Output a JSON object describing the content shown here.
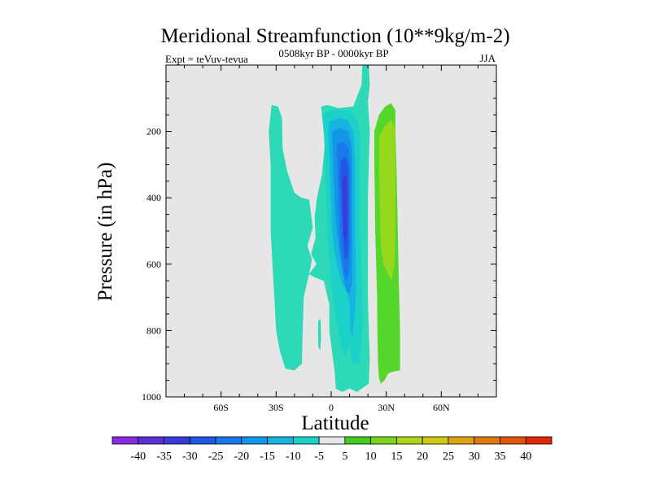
{
  "chart_data": {
    "type": "contour",
    "title": "Meridional Streamfunction (10**9kg/m-2)",
    "subtitle_left": "Expt = teVuv-tevua",
    "subtitle_center": "0508kyr BP - 0000kyr BP",
    "subtitle_right": "JJA",
    "xlabel": "Latitude",
    "ylabel": "Pressure (in hPa)",
    "xlim": [
      -90,
      90
    ],
    "ylim": [
      1000,
      0
    ],
    "x_ticks": [
      {
        "value": -60,
        "label": "60S"
      },
      {
        "value": -30,
        "label": "30S"
      },
      {
        "value": 0,
        "label": "0"
      },
      {
        "value": 30,
        "label": "30N"
      },
      {
        "value": 60,
        "label": "60N"
      }
    ],
    "y_ticks": [
      {
        "value": 200,
        "label": "200"
      },
      {
        "value": 400,
        "label": "400"
      },
      {
        "value": 600,
        "label": "600"
      },
      {
        "value": 800,
        "label": "800"
      },
      {
        "value": 1000,
        "label": "1000"
      }
    ],
    "plot_background": "#e6e6e6",
    "levels": [
      -40,
      -35,
      -30,
      -25,
      -20,
      -15,
      -10,
      -5,
      5,
      10,
      15,
      20,
      25,
      30,
      35,
      40
    ],
    "colorbar_colors": [
      "#8a2be2",
      "#5a2fd6",
      "#3a3ad8",
      "#2058e6",
      "#1a78ea",
      "#1496e8",
      "#16b4e0",
      "#1cd2c8",
      "#e6e6e6",
      "#44cc22",
      "#7ad41e",
      "#acd61a",
      "#d0c814",
      "#dca410",
      "#dc7c0e",
      "#de560a",
      "#e02806"
    ],
    "contour_fill_colors": {
      "-40": "#5a2fd6",
      "-35": "#3a3ad8",
      "-30": "#2058e6",
      "-25": "#1a78ea",
      "-20": "#1496e8",
      "-15": "#16b4e0",
      "-10": "#1cd2c8",
      "-5": "#2ed9b8",
      "5": "#55d62a",
      "10": "#96d81c"
    },
    "regions": [
      {
        "level": -5,
        "points": [
          [
            -32.5,
            120
          ],
          [
            -29,
            125
          ],
          [
            -26.8,
            160
          ],
          [
            -26.5,
            250
          ],
          [
            -24,
            320
          ],
          [
            -20,
            385
          ],
          [
            -16,
            400
          ],
          [
            -12,
            405
          ],
          [
            -10,
            490
          ],
          [
            -13,
            545
          ],
          [
            -10.5,
            585
          ],
          [
            -12,
            630
          ],
          [
            -9,
            640
          ],
          [
            -4,
            650
          ],
          [
            -2,
            700
          ],
          [
            -1,
            720
          ],
          [
            -1,
            800
          ],
          [
            2,
            930
          ],
          [
            2.5,
            975
          ],
          [
            6,
            985
          ],
          [
            10,
            975
          ],
          [
            14,
            985
          ],
          [
            20.5,
            960
          ],
          [
            21,
            880
          ],
          [
            20.5,
            800
          ],
          [
            20,
            700
          ],
          [
            20,
            590
          ],
          [
            20,
            500
          ],
          [
            20,
            400
          ],
          [
            20.5,
            300
          ],
          [
            21,
            200
          ],
          [
            20,
            110
          ],
          [
            21,
            60
          ],
          [
            20.5,
            0
          ],
          [
            17,
            0
          ],
          [
            16.5,
            60
          ],
          [
            12,
            125
          ],
          [
            4,
            130
          ],
          [
            -2,
            120
          ],
          [
            -5.5,
            125
          ],
          [
            -4.5,
            180
          ],
          [
            -3.5,
            240
          ],
          [
            -5,
            330
          ],
          [
            -7,
            380
          ],
          [
            -8,
            410
          ],
          [
            -9,
            460
          ],
          [
            -8.5,
            520
          ],
          [
            -11,
            570
          ],
          [
            -8,
            600
          ],
          [
            -12,
            630
          ],
          [
            -12.5,
            640
          ],
          [
            -15,
            700
          ],
          [
            -16,
            900
          ],
          [
            -20,
            920
          ],
          [
            -25,
            915
          ],
          [
            -28,
            860
          ],
          [
            -30,
            800
          ],
          [
            -31,
            700
          ],
          [
            -32,
            600
          ],
          [
            -33,
            500
          ],
          [
            -33,
            400
          ],
          [
            -33,
            300
          ],
          [
            -34,
            200
          ]
        ]
      },
      {
        "level": -10,
        "points": [
          [
            -5,
            150
          ],
          [
            0,
            135
          ],
          [
            6,
            135
          ],
          [
            11,
            140
          ],
          [
            15,
            170
          ],
          [
            16,
            260
          ],
          [
            15.5,
            360
          ],
          [
            15.5,
            440
          ],
          [
            16,
            520
          ],
          [
            16.5,
            600
          ],
          [
            17,
            700
          ],
          [
            17,
            780
          ],
          [
            16.5,
            850
          ],
          [
            15,
            900
          ],
          [
            11.5,
            900
          ],
          [
            10,
            840
          ],
          [
            8,
            880
          ],
          [
            5.5,
            850
          ],
          [
            3,
            780
          ],
          [
            1,
            700
          ],
          [
            -0.5,
            620
          ],
          [
            -1.5,
            560
          ],
          [
            -2,
            490
          ],
          [
            -2.5,
            420
          ],
          [
            -3,
            340
          ],
          [
            -3.5,
            260
          ],
          [
            -4,
            200
          ]
        ]
      },
      {
        "level": -15,
        "points": [
          [
            -1,
            170
          ],
          [
            4,
            160
          ],
          [
            9,
            165
          ],
          [
            12,
            200
          ],
          [
            13,
            280
          ],
          [
            13,
            360
          ],
          [
            13,
            440
          ],
          [
            13,
            520
          ],
          [
            13.5,
            600
          ],
          [
            13.5,
            680
          ],
          [
            13,
            740
          ],
          [
            11.5,
            820
          ],
          [
            10.5,
            800
          ],
          [
            10,
            720
          ],
          [
            8.5,
            680
          ],
          [
            6,
            660
          ],
          [
            4,
            620
          ],
          [
            2,
            570
          ],
          [
            0.5,
            500
          ],
          [
            0,
            420
          ],
          [
            -0.5,
            340
          ],
          [
            -1,
            260
          ],
          [
            -1.5,
            200
          ]
        ]
      },
      {
        "level": -20,
        "points": [
          [
            0.5,
            200
          ],
          [
            5,
            190
          ],
          [
            9.5,
            200
          ],
          [
            11.5,
            260
          ],
          [
            11.5,
            340
          ],
          [
            11.5,
            420
          ],
          [
            11.5,
            500
          ],
          [
            11.5,
            580
          ],
          [
            11.5,
            650
          ],
          [
            10,
            690
          ],
          [
            8,
            680
          ],
          [
            6,
            620
          ],
          [
            4.5,
            560
          ],
          [
            3,
            500
          ],
          [
            2,
            430
          ],
          [
            1.5,
            360
          ],
          [
            1,
            280
          ]
        ]
      },
      {
        "level": -25,
        "points": [
          [
            3,
            240
          ],
          [
            6.5,
            230
          ],
          [
            9.5,
            250
          ],
          [
            10.5,
            310
          ],
          [
            10.5,
            390
          ],
          [
            10.5,
            470
          ],
          [
            10.5,
            550
          ],
          [
            9.5,
            630
          ],
          [
            8,
            650
          ],
          [
            6.5,
            610
          ],
          [
            5,
            550
          ],
          [
            4.5,
            480
          ],
          [
            4,
            410
          ],
          [
            3.5,
            330
          ]
        ]
      },
      {
        "level": -30,
        "points": [
          [
            5,
            290
          ],
          [
            8,
            275
          ],
          [
            9.5,
            310
          ],
          [
            9.5,
            380
          ],
          [
            9.5,
            450
          ],
          [
            9.5,
            520
          ],
          [
            9,
            580
          ],
          [
            7.5,
            590
          ],
          [
            6.5,
            540
          ],
          [
            6,
            470
          ],
          [
            5.5,
            400
          ],
          [
            5,
            340
          ]
        ]
      },
      {
        "level": -35,
        "points": [
          [
            6.3,
            340
          ],
          [
            8,
            330
          ],
          [
            8.8,
            370
          ],
          [
            8.8,
            430
          ],
          [
            8.7,
            490
          ],
          [
            8,
            530
          ],
          [
            7,
            520
          ],
          [
            6.6,
            470
          ],
          [
            6.4,
            400
          ]
        ]
      },
      {
        "level": -5,
        "points": [
          [
            -7,
            770
          ],
          [
            -5.8,
            765
          ],
          [
            -5.5,
            820
          ],
          [
            -6,
            860
          ],
          [
            -7,
            850
          ],
          [
            -7.2,
            800
          ]
        ]
      },
      {
        "level": 5,
        "points": [
          [
            23.5,
            200
          ],
          [
            26,
            150
          ],
          [
            29.5,
            125
          ],
          [
            32.5,
            115
          ],
          [
            35,
            135
          ],
          [
            35,
            200
          ],
          [
            35.5,
            300
          ],
          [
            36,
            420
          ],
          [
            36.5,
            560
          ],
          [
            37,
            700
          ],
          [
            37.5,
            800
          ],
          [
            37.5,
            920
          ],
          [
            33,
            925
          ],
          [
            31,
            930
          ],
          [
            29,
            950
          ],
          [
            27,
            960
          ],
          [
            26,
            940
          ],
          [
            25.5,
            900
          ],
          [
            25.2,
            800
          ],
          [
            25,
            700
          ],
          [
            24.5,
            600
          ],
          [
            24,
            500
          ],
          [
            23.8,
            400
          ],
          [
            23.5,
            300
          ]
        ]
      },
      {
        "level": 10,
        "points": [
          [
            26,
            220
          ],
          [
            29,
            185
          ],
          [
            32.5,
            165
          ],
          [
            35,
            190
          ],
          [
            35,
            300
          ],
          [
            35,
            420
          ],
          [
            35,
            520
          ],
          [
            34.5,
            600
          ],
          [
            33,
            650
          ],
          [
            31,
            630
          ],
          [
            28.5,
            600
          ],
          [
            27,
            540
          ],
          [
            26.5,
            440
          ],
          [
            26.2,
            340
          ]
        ]
      }
    ]
  }
}
